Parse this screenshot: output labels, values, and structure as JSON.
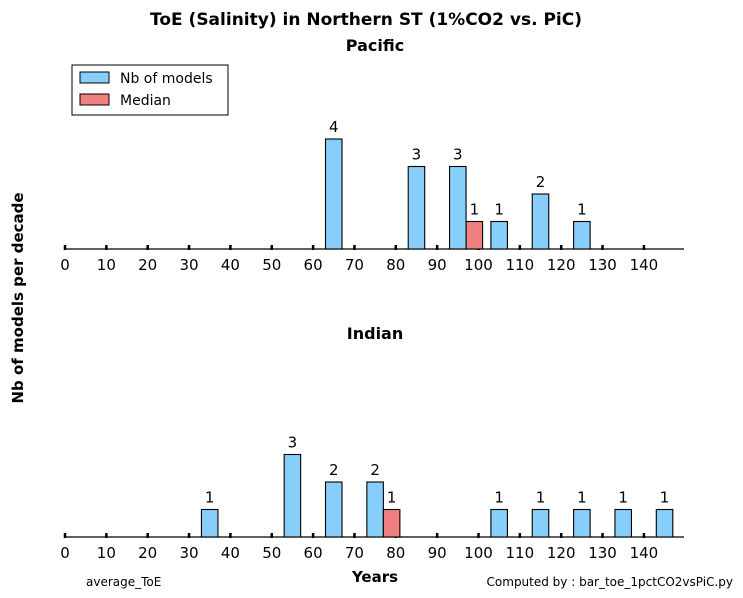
{
  "chart_data": {
    "type": "bar",
    "title": "ToE (Salinity) in Northern ST (1%CO2 vs. PiC)",
    "ylabel": "Nb of models per decade",
    "xlabel": "Years",
    "x_ticks": [
      0,
      10,
      20,
      30,
      40,
      50,
      60,
      70,
      80,
      90,
      100,
      110,
      120,
      130,
      140
    ],
    "xlim": [
      0,
      150
    ],
    "legend": {
      "placement": "top-left",
      "entries": [
        {
          "name": "Nb of models",
          "color": "#87cefa"
        },
        {
          "name": "Median",
          "color": "#f08080"
        }
      ]
    },
    "panels": [
      {
        "subtitle": "Pacific",
        "ylim": [
          0,
          4.5
        ],
        "bars": [
          {
            "decade_start": 60,
            "value": 4
          },
          {
            "decade_start": 80,
            "value": 3
          },
          {
            "decade_start": 90,
            "value": 3
          },
          {
            "decade_start": 100,
            "value": 1
          },
          {
            "decade_start": 110,
            "value": 2
          },
          {
            "decade_start": 120,
            "value": 1
          }
        ],
        "median": {
          "decade_start": 90,
          "value": 1
        }
      },
      {
        "subtitle": "Indian",
        "ylim": [
          0,
          3.5
        ],
        "bars": [
          {
            "decade_start": 30,
            "value": 1
          },
          {
            "decade_start": 50,
            "value": 3
          },
          {
            "decade_start": 60,
            "value": 2
          },
          {
            "decade_start": 70,
            "value": 2
          },
          {
            "decade_start": 100,
            "value": 1
          },
          {
            "decade_start": 110,
            "value": 1
          },
          {
            "decade_start": 120,
            "value": 1
          },
          {
            "decade_start": 130,
            "value": 1
          },
          {
            "decade_start": 140,
            "value": 1
          }
        ],
        "median": {
          "decade_start": 70,
          "value": 1
        }
      }
    ]
  },
  "footer": {
    "left": "average_ToE",
    "right": "Computed by : bar_toe_1pctCO2vsPiC.py"
  }
}
